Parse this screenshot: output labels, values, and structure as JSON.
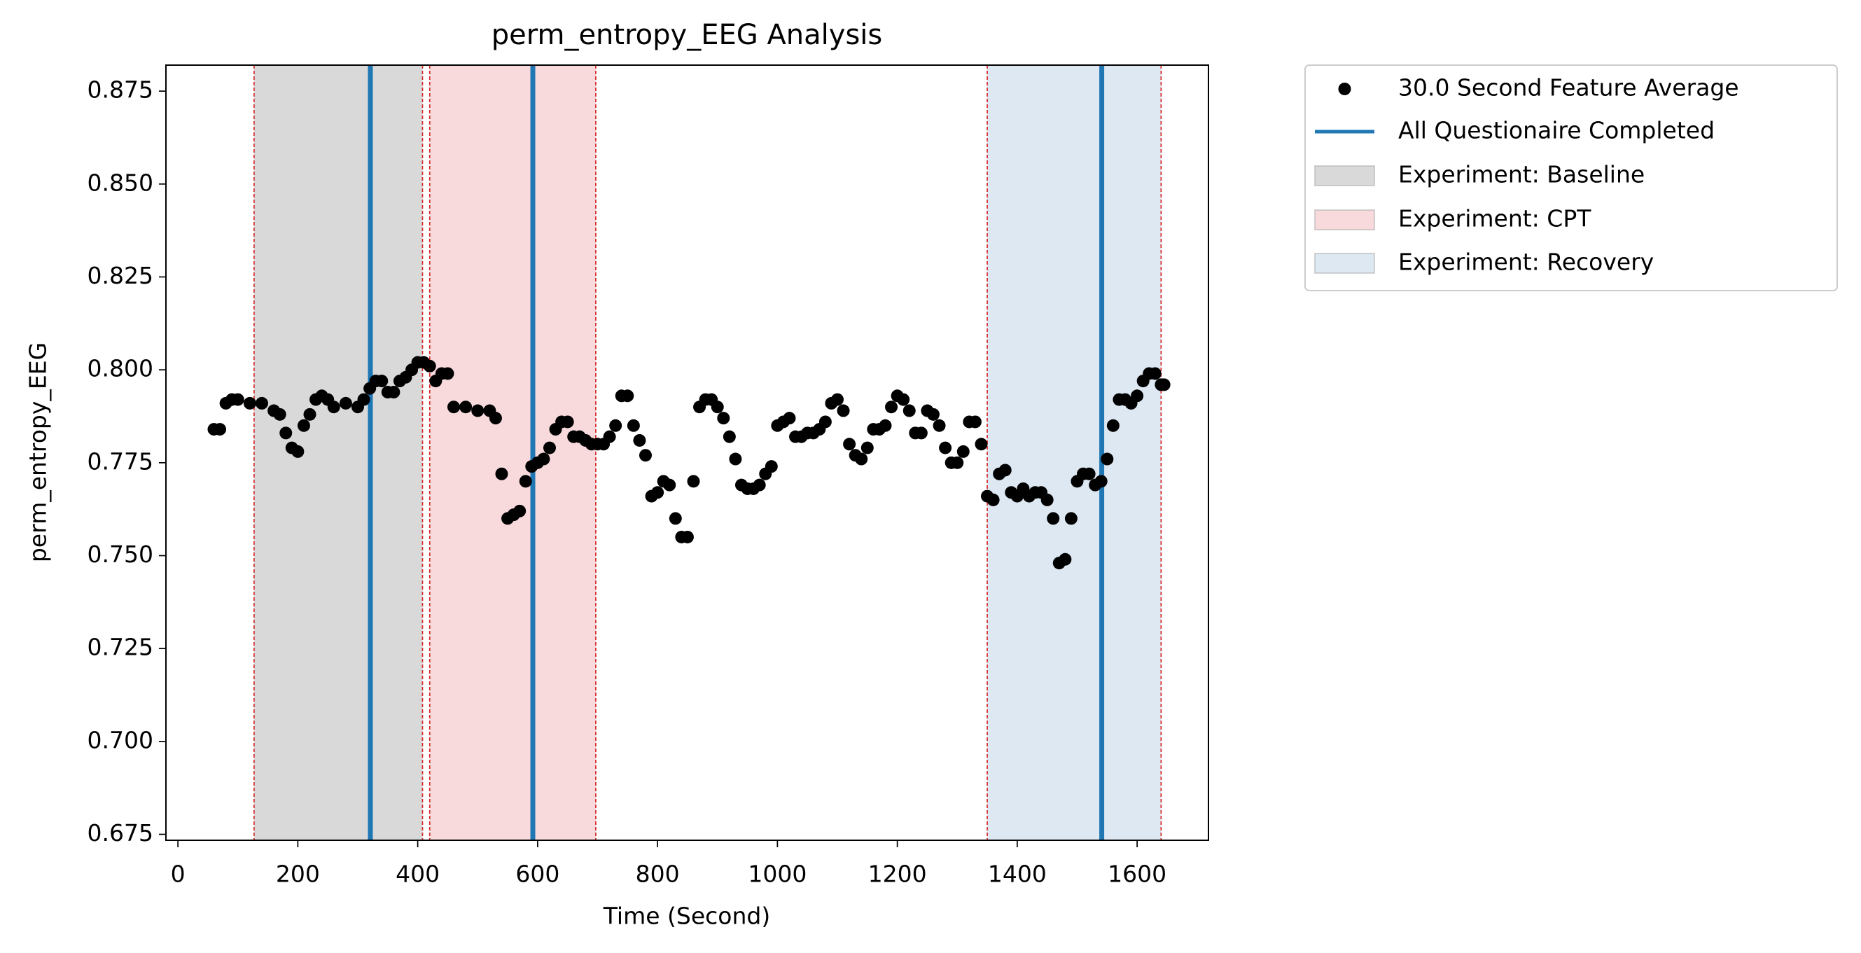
{
  "chart_data": {
    "type": "scatter",
    "title": "perm_entropy_EEG Analysis",
    "xlabel": "Time (Second)",
    "ylabel": "perm_entropy_EEG",
    "xlim": [
      -20,
      1719
    ],
    "ylim": [
      0.6734,
      0.882
    ],
    "xticks": [
      0,
      200,
      400,
      600,
      800,
      1000,
      1200,
      1400,
      1600
    ],
    "yticks": [
      0.675,
      {
        "value": 0.7,
        "label": "0.700"
      },
      0.725,
      {
        "value": 0.75,
        "label": "0.750"
      },
      0.775,
      {
        "value": 0.8,
        "label": "0.800"
      },
      0.825,
      {
        "value": 0.85,
        "label": "0.850"
      },
      0.875
    ],
    "x": [
      60,
      70,
      80,
      90,
      100,
      120,
      140,
      160,
      170,
      180,
      190,
      200,
      210,
      220,
      230,
      240,
      250,
      260,
      280,
      300,
      310,
      320,
      330,
      340,
      350,
      360,
      370,
      380,
      390,
      400,
      410,
      420,
      430,
      440,
      450,
      460,
      480,
      500,
      520,
      530,
      540,
      550,
      560,
      570,
      580,
      590,
      600,
      610,
      620,
      630,
      640,
      650,
      660,
      670,
      680,
      690,
      700,
      710,
      720,
      730,
      740,
      750,
      760,
      770,
      780,
      790,
      800,
      810,
      820,
      830,
      840,
      850,
      860,
      870,
      880,
      890,
      900,
      910,
      920,
      930,
      940,
      950,
      960,
      970,
      980,
      990,
      1000,
      1010,
      1020,
      1030,
      1040,
      1050,
      1060,
      1070,
      1080,
      1090,
      1100,
      1110,
      1120,
      1130,
      1140,
      1150,
      1160,
      1170,
      1180,
      1190,
      1200,
      1210,
      1220,
      1230,
      1240,
      1250,
      1260,
      1270,
      1280,
      1290,
      1300,
      1310,
      1320,
      1330,
      1340,
      1350,
      1360,
      1370,
      1380,
      1390,
      1400,
      1410,
      1420,
      1430,
      1440,
      1450,
      1460,
      1470,
      1480,
      1490,
      1500,
      1510,
      1520,
      1530,
      1540,
      1550,
      1560,
      1570,
      1580,
      1590,
      1600,
      1610,
      1620,
      1630,
      1640,
      1645
    ],
    "series": [
      {
        "name": "30.0 Second Feature Average",
        "color": "#000000",
        "values": [
          0.784,
          0.784,
          0.791,
          0.792,
          0.792,
          0.791,
          0.791,
          0.789,
          0.788,
          0.783,
          0.779,
          0.778,
          0.785,
          0.788,
          0.792,
          0.793,
          0.792,
          0.79,
          0.791,
          0.79,
          0.792,
          0.795,
          0.797,
          0.797,
          0.794,
          0.794,
          0.797,
          0.798,
          0.8,
          0.802,
          0.802,
          0.801,
          0.797,
          0.799,
          0.799,
          0.79,
          0.79,
          0.789,
          0.789,
          0.787,
          0.772,
          0.76,
          0.761,
          0.762,
          0.77,
          0.774,
          0.775,
          0.776,
          0.779,
          0.784,
          0.786,
          0.786,
          0.782,
          0.782,
          0.781,
          0.78,
          0.78,
          0.78,
          0.782,
          0.785,
          0.793,
          0.793,
          0.785,
          0.781,
          0.777,
          0.766,
          0.767,
          0.77,
          0.769,
          0.76,
          0.755,
          0.755,
          0.77,
          0.79,
          0.792,
          0.792,
          0.79,
          0.787,
          0.782,
          0.776,
          0.769,
          0.768,
          0.768,
          0.769,
          0.772,
          0.774,
          0.785,
          0.786,
          0.787,
          0.782,
          0.782,
          0.783,
          0.783,
          0.784,
          0.786,
          0.791,
          0.792,
          0.789,
          0.78,
          0.777,
          0.776,
          0.779,
          0.784,
          0.784,
          0.785,
          0.79,
          0.793,
          0.792,
          0.789,
          0.783,
          0.783,
          0.789,
          0.788,
          0.785,
          0.779,
          0.775,
          0.775,
          0.778,
          0.786,
          0.786,
          0.78,
          0.766,
          0.765,
          0.772,
          0.773,
          0.767,
          0.766,
          0.768,
          0.766,
          0.767,
          0.767,
          0.765,
          0.76,
          0.748,
          0.749,
          0.76,
          0.77,
          0.772,
          0.772,
          0.769,
          0.77,
          0.776,
          0.785,
          0.792,
          0.792,
          0.791,
          0.793,
          0.797,
          0.799,
          0.799,
          0.796,
          0.796
        ]
      }
    ],
    "vlines": {
      "name": "All Questionaire Completed",
      "color": "#1f77b4",
      "x": [
        321,
        592,
        1541
      ]
    },
    "spans": [
      {
        "name": "Experiment: Baseline",
        "color": "#d9d9d9",
        "edge_color": "#d62728",
        "start": 127,
        "end": 408
      },
      {
        "name": "Experiment: CPT",
        "color": "#f8dadd",
        "edge_color": "#d62728",
        "start": 420,
        "end": 697
      },
      {
        "name": "Experiment: Recovery",
        "color": "#dde8f2",
        "edge_color": "#d62728",
        "start": 1350,
        "end": 1640
      }
    ]
  }
}
